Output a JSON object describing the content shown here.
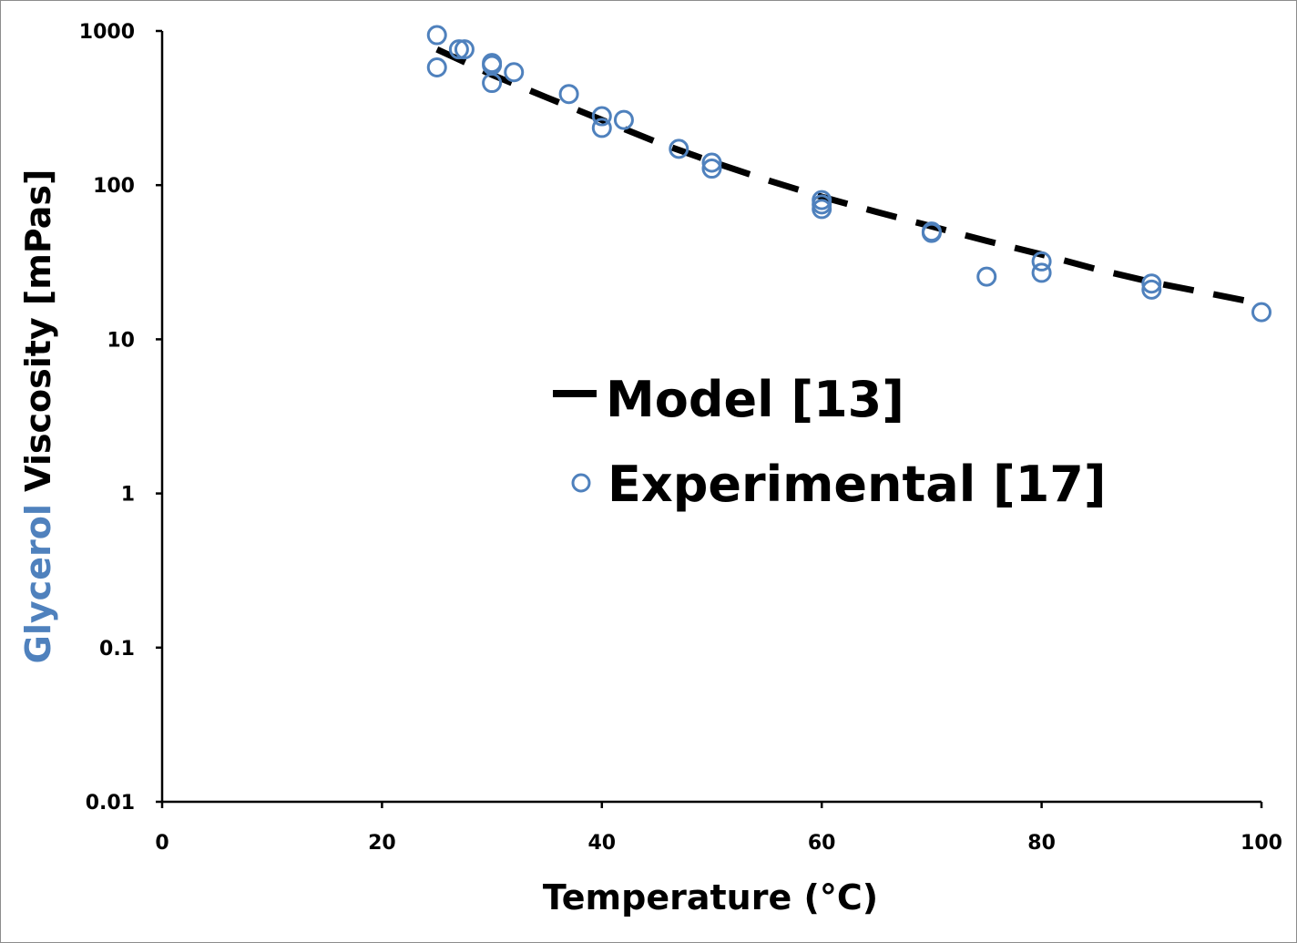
{
  "chart_data": {
    "type": "scatter",
    "title": "",
    "xlabel": "Temperature (°C)",
    "ylabel_highlight": "Glycerol",
    "ylabel_rest": " Viscosity [mPas]",
    "xlim": [
      0,
      100
    ],
    "ylim": [
      0.01,
      1000
    ],
    "y_scale": "log",
    "grid": false,
    "legend_position": "center-right",
    "x_ticks": [
      "0",
      "20",
      "40",
      "60",
      "80",
      "100"
    ],
    "x_tick_values": [
      0,
      20,
      40,
      60,
      80,
      100
    ],
    "y_ticks": [
      "1000",
      "100",
      "10",
      "1",
      "0.1",
      "0.01"
    ],
    "y_tick_values": [
      1000,
      100,
      10,
      1,
      0.1,
      0.01
    ],
    "series": [
      {
        "name": "Model [13]",
        "kind": "line",
        "style": "dashed",
        "color": "#000000",
        "x": [
          25,
          30,
          35,
          40,
          45,
          50,
          55,
          60,
          65,
          70,
          75,
          80,
          85,
          90,
          95,
          100
        ],
        "y": [
          760,
          520,
          370,
          265,
          190,
          142,
          108,
          84,
          67,
          54,
          43.5,
          35.5,
          28.5,
          23.5,
          20,
          17
        ]
      },
      {
        "name": "Experimental [17]",
        "kind": "scatter",
        "marker": "open-circle",
        "color": "#4f81bd",
        "x": [
          25,
          25,
          27,
          27.5,
          30,
          30,
          30,
          32,
          37,
          40,
          40,
          42,
          47,
          50,
          50,
          60,
          60,
          60,
          70,
          70,
          75,
          80,
          80,
          90,
          90,
          100
        ],
        "y": [
          940,
          580,
          760,
          760,
          600,
          620,
          460,
          540,
          390,
          280,
          235,
          265,
          172,
          140,
          128,
          80,
          75,
          70,
          50,
          49,
          25.5,
          32,
          27,
          23,
          21,
          15
        ]
      }
    ],
    "colors": {
      "accent": "#4f81bd",
      "text": "#000000",
      "frame": "#8c8c8c"
    }
  }
}
